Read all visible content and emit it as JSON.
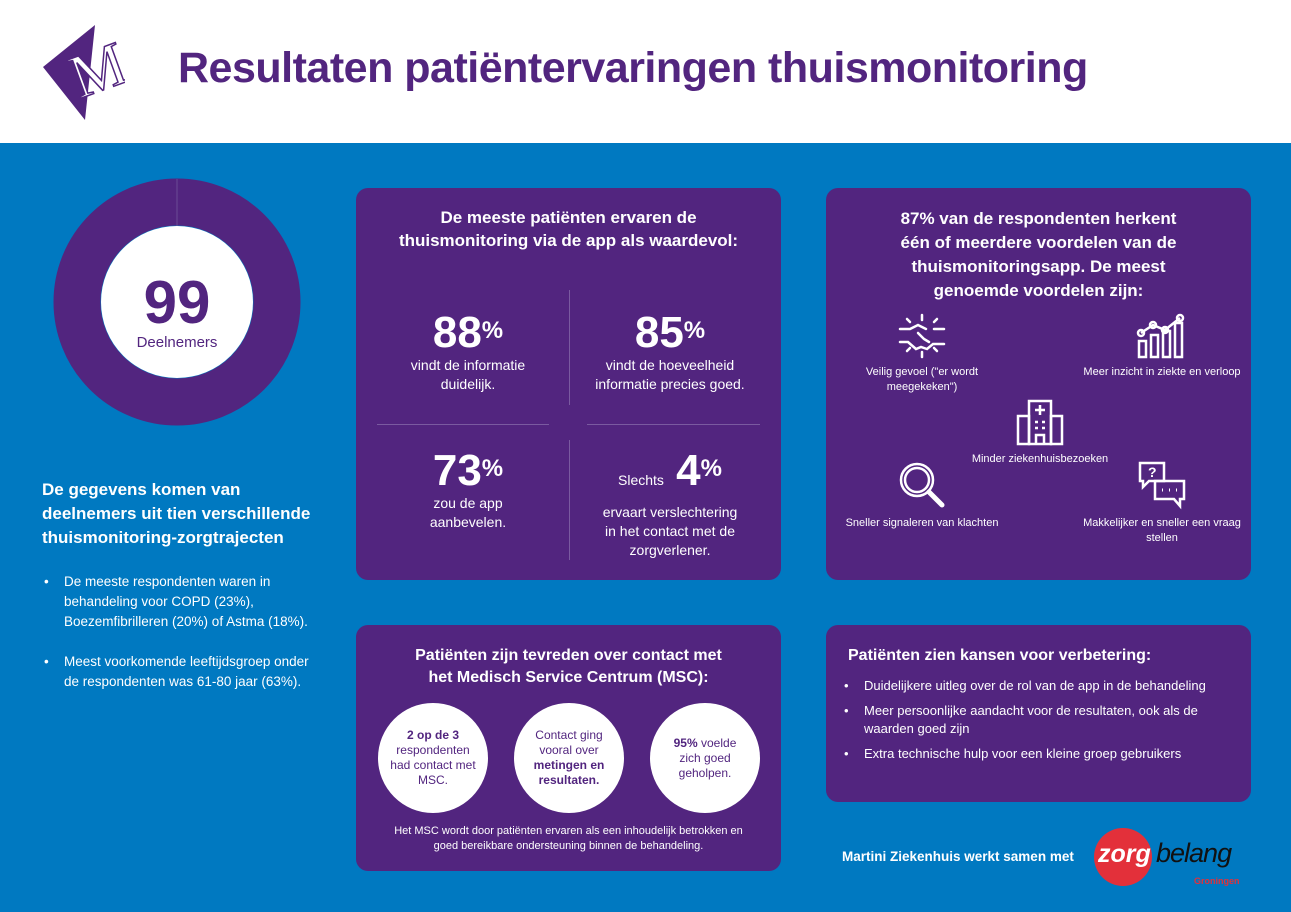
{
  "header": {
    "title": "Resultaten patiëntervaringen thuismonitoring",
    "logo_text": "M"
  },
  "participants": {
    "count": "99",
    "label": "Deelnemers"
  },
  "left": {
    "heading": "De gegevens komen van deelnemers uit tien verschillende thuismonitoring-zorgtrajecten",
    "bullets": [
      "De meeste respondenten waren in behandeling voor COPD (23%), Boezemfibrilleren (20%) of Astma (18%).",
      "Meest voorkomende leeftijdsgroep onder de respondenten was 61-80 jaar (63%)."
    ]
  },
  "value_card": {
    "title_line1": "De meeste patiënten ervaren de",
    "title_line2": "thuismonitoring via de app als waardevol:",
    "stats": [
      {
        "value": "88",
        "unit": "%",
        "prefix": "",
        "text": "vindt de informatie duidelijk."
      },
      {
        "value": "85",
        "unit": "%",
        "prefix": "",
        "text": "vindt de hoeveelheid informatie precies goed."
      },
      {
        "value": "73",
        "unit": "%",
        "prefix": "",
        "text": "zou de app aanbevelen."
      },
      {
        "value": "4",
        "unit": "%",
        "prefix": "Slechts",
        "text": "ervaart verslechtering in het contact met de zorgverlener."
      }
    ]
  },
  "benefits_card": {
    "title": "87% van de respondenten herkent één of meerdere voordelen van de thuismonitoringsapp. De meest genoemde voordelen zijn:",
    "items": [
      {
        "icon": "handshake-icon",
        "label": "Veilig gevoel (\"er wordt meegekeken\")"
      },
      {
        "icon": "chart-icon",
        "label": "Meer inzicht in ziekte en verloop"
      },
      {
        "icon": "hospital-icon",
        "label": "Minder ziekenhuisbezoeken"
      },
      {
        "icon": "magnifier-icon",
        "label": "Sneller signaleren van klachten"
      },
      {
        "icon": "chat-icon",
        "label": "Makkelijker en sneller een vraag stellen"
      }
    ]
  },
  "msc_card": {
    "title_line1": "Patiënten zijn tevreden over contact met",
    "title_line2": "het Medisch Service Centrum (MSC):",
    "c1_bold": "2 op de 3",
    "c1_text": "respondenten had contact met MSC.",
    "c2_text": "Contact ging vooral over",
    "c2_bold": "metingen en resultaten",
    "c3_bold": "95%",
    "c3_text": "voelde zich goed geholpen.",
    "footer": "Het MSC wordt door patiënten ervaren als een inhoudelijk betrokken en goed bereikbare ondersteuning binnen de behandeling."
  },
  "improve_card": {
    "title": "Patiënten zien kansen voor verbetering:",
    "bullets": [
      "Duidelijkere uitleg over de rol van de app in de behandeling",
      "Meer persoonlijke aandacht voor de resultaten, ook als de waarden goed zijn",
      "Extra technische hulp voor een kleine groep gebruikers"
    ]
  },
  "footer": {
    "text": "Martini Ziekenhuis werkt samen met",
    "partner_logo": {
      "zorg": "zorg",
      "belang": "belang",
      "region": "Groningen"
    }
  },
  "colors": {
    "blue": "#0079c1",
    "purple": "#52257f",
    "red": "#e3303a"
  }
}
